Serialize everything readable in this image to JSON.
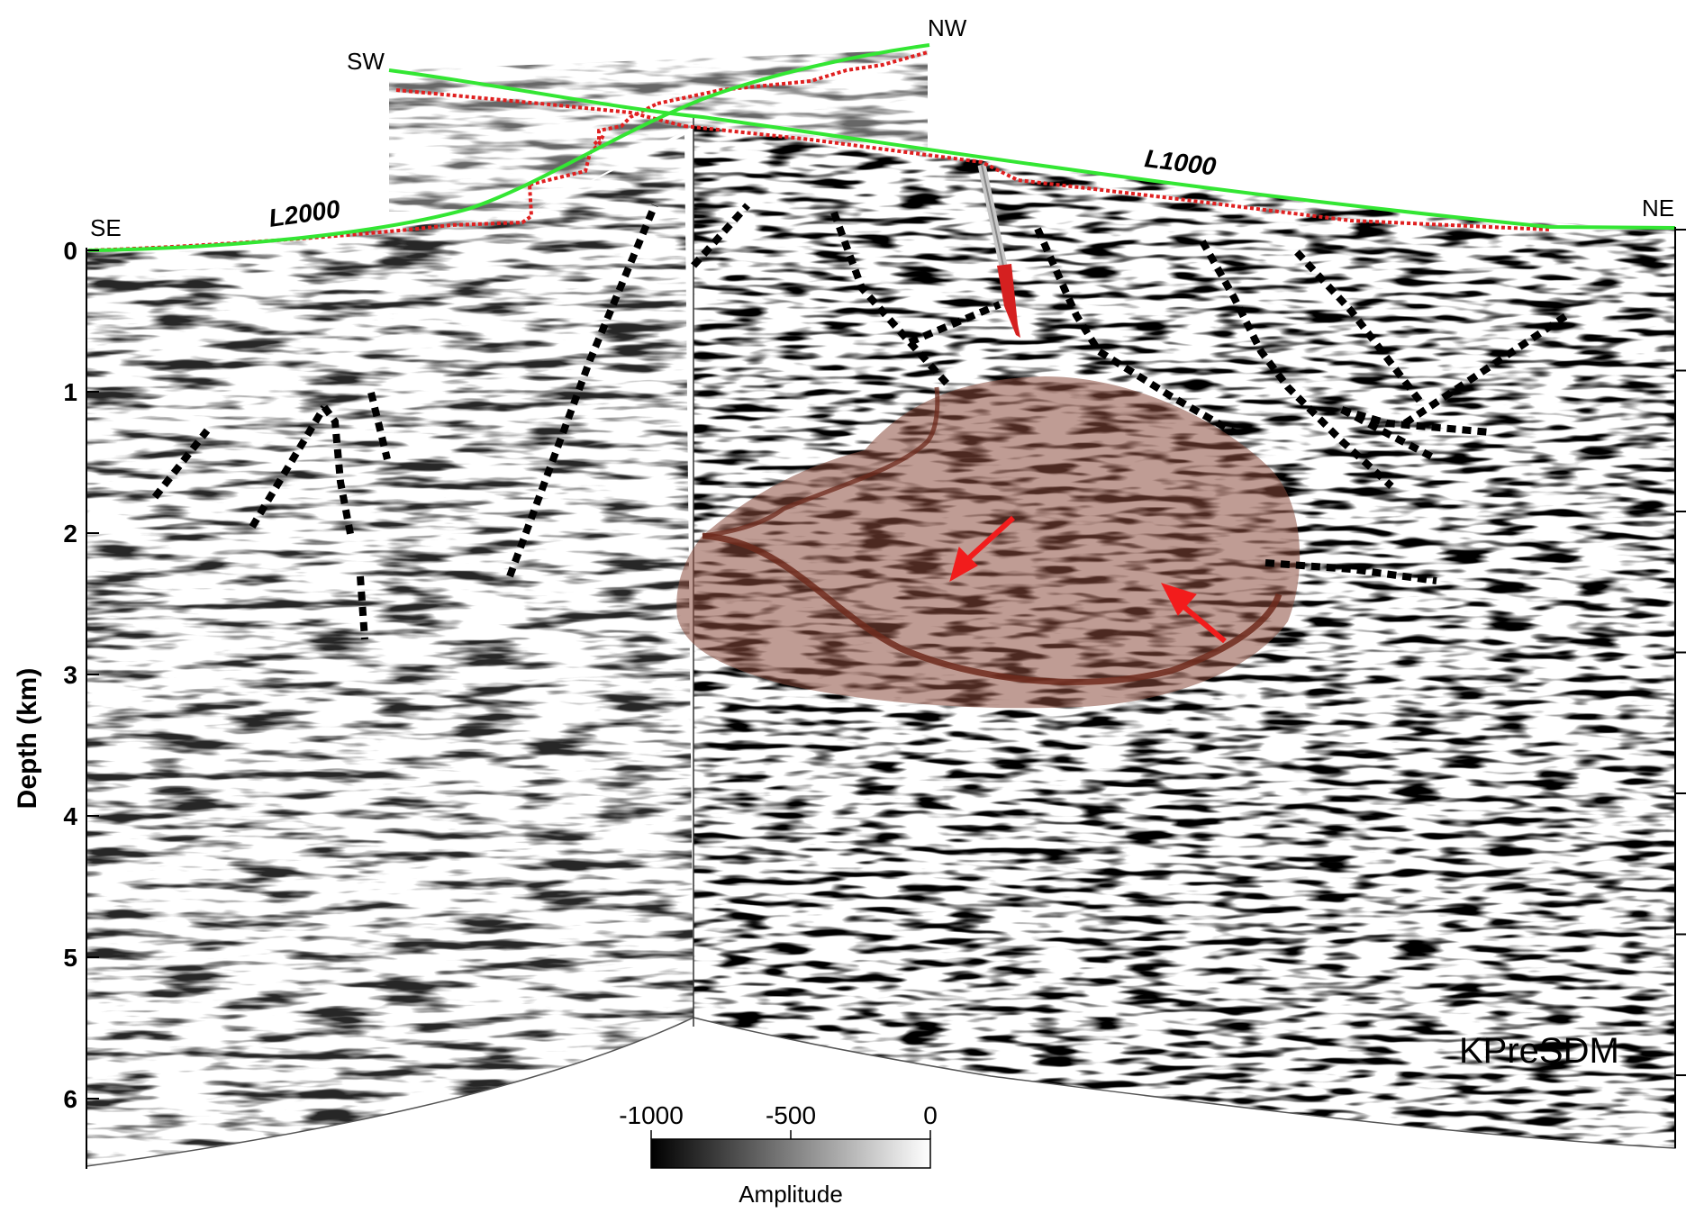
{
  "labels": {
    "sw": "SW",
    "nw": "NW",
    "se": "SE",
    "ne": "NE",
    "line_l1000": "L1000",
    "line_l2000": "L2000",
    "method": "KPreSDM"
  },
  "depth_axis": {
    "label": "Depth (km)",
    "ticks": [
      "0",
      "1",
      "2",
      "3",
      "4",
      "5",
      "6"
    ],
    "range_km": [
      0,
      6.5
    ]
  },
  "colorbar": {
    "title": "Amplitude",
    "ticks": [
      "-1000",
      "-500",
      "0"
    ],
    "range": [
      -1000,
      0
    ]
  },
  "colors": {
    "surface_line": "#33e633",
    "topography": "#e02020",
    "body_fill": "#8b4a3c",
    "arrows": "#f21c1c",
    "faults": "#000000"
  }
}
